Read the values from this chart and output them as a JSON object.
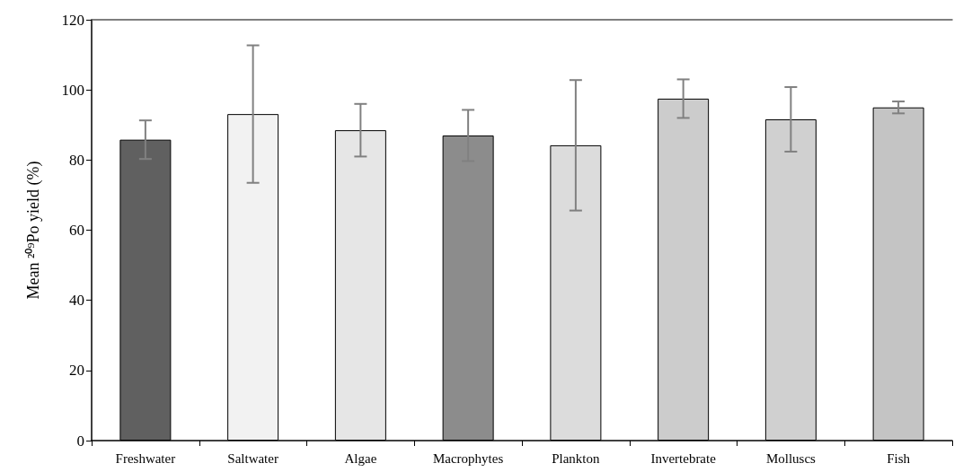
{
  "chart_data": {
    "type": "bar",
    "ylabel": "Mean ²⁰⁹Po yield (%)",
    "categories": [
      "Freshwater",
      "Saltwater",
      "Algae",
      "Macrophytes",
      "Plankton",
      "Invertebrate",
      "Molluscs",
      "Fish"
    ],
    "values": [
      85.8,
      93.1,
      88.5,
      87,
      84.2,
      97.5,
      91.6,
      95
    ],
    "errors": [
      5.5,
      19.6,
      7.5,
      7.3,
      18.6,
      5.5,
      9.2,
      1.7
    ],
    "colors": [
      "#606060",
      "#f2f2f2",
      "#e6e6e6",
      "#8c8c8c",
      "#dcdcdc",
      "#cccccc",
      "#d0d0d0",
      "#c4c4c4"
    ],
    "ylim": [
      0,
      120
    ],
    "yticks": [
      0,
      20,
      40,
      60,
      80,
      100,
      120
    ],
    "grid": false
  }
}
